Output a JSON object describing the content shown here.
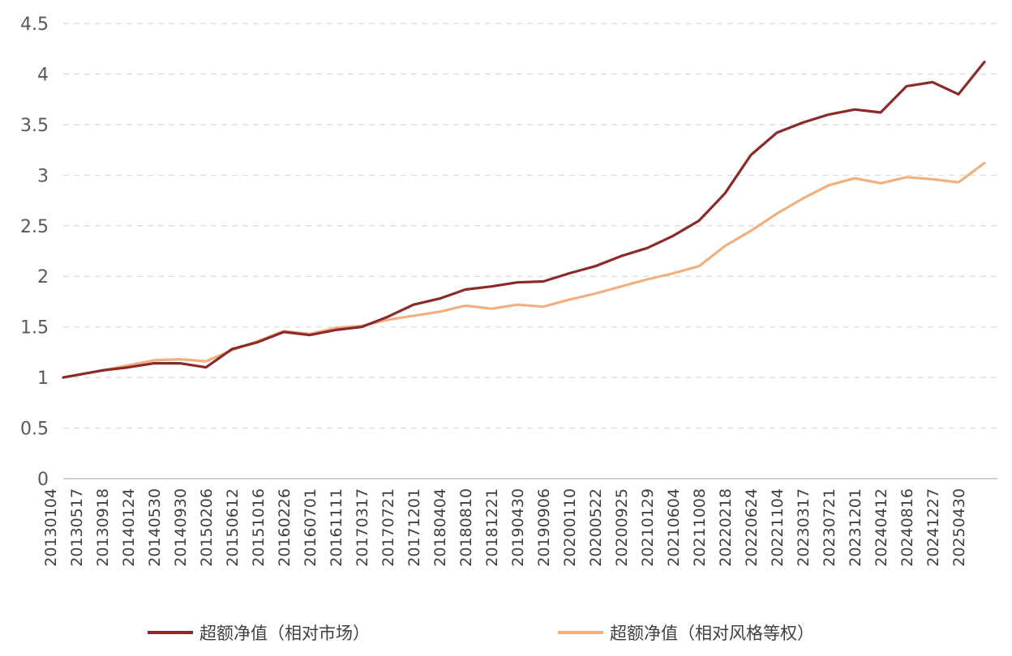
{
  "chart_data": {
    "type": "line",
    "ylim": [
      0,
      4.5
    ],
    "yticks": [
      "0",
      "0.5",
      "1",
      "1.5",
      "2",
      "2.5",
      "3",
      "3.5",
      "4",
      "4.5"
    ],
    "grid": true,
    "legend_position": "bottom",
    "x": [
      "20130104",
      "20130517",
      "20130918",
      "20140124",
      "20140530",
      "20140930",
      "20150206",
      "20150612",
      "20151016",
      "20160226",
      "20160701",
      "20161111",
      "20170317",
      "20170721",
      "20171201",
      "20180404",
      "20180810",
      "20181221",
      "20190430",
      "20190906",
      "20200110",
      "20200522",
      "20200925",
      "20210129",
      "20210604",
      "20211008",
      "20220218",
      "20220624",
      "20221104",
      "20230317",
      "20230721",
      "20231201",
      "20240412",
      "20240816",
      "20241227",
      "20250430"
    ],
    "series": [
      {
        "name": "超额净值（相对市场）",
        "color": "#8b2a2a",
        "values": [
          1.0,
          1.07,
          1.1,
          1.14,
          1.14,
          1.1,
          1.28,
          1.35,
          1.45,
          1.42,
          1.47,
          1.5,
          1.6,
          1.72,
          1.78,
          1.87,
          1.9,
          1.94,
          1.95,
          2.03,
          2.1,
          2.2,
          2.28,
          2.4,
          2.55,
          2.82,
          3.2,
          3.42,
          3.52,
          3.6,
          3.65,
          3.62,
          3.88,
          3.92,
          3.8,
          4.12
        ]
      },
      {
        "name": "超额净值（相对风格等权）",
        "color": "#f0b07f",
        "values": [
          1.0,
          1.07,
          1.12,
          1.17,
          1.18,
          1.16,
          1.27,
          1.36,
          1.46,
          1.43,
          1.49,
          1.51,
          1.57,
          1.61,
          1.65,
          1.71,
          1.68,
          1.72,
          1.7,
          1.77,
          1.83,
          1.9,
          1.97,
          2.03,
          2.1,
          2.3,
          2.45,
          2.62,
          2.77,
          2.9,
          2.97,
          2.92,
          2.98,
          2.96,
          2.93,
          3.12
        ]
      }
    ]
  }
}
